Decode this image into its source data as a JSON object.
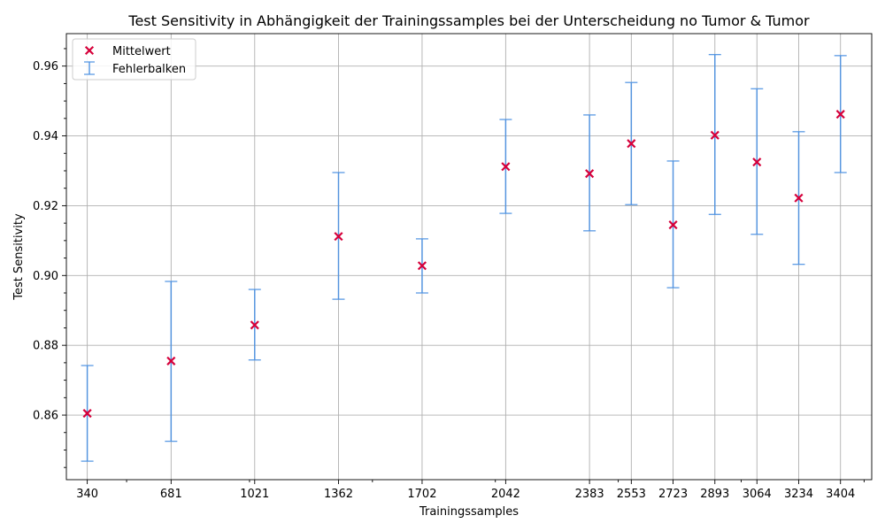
{
  "chart_data": {
    "type": "scatter",
    "title": "Test Sensitivity in Abhängigkeit der Trainingssamples bei der Unterscheidung no Tumor & Tumor",
    "xlabel": "Trainingssamples",
    "ylabel": "Test Sensitivity",
    "x": [
      340,
      681,
      1021,
      1362,
      1702,
      2042,
      2383,
      2553,
      2723,
      2893,
      3064,
      3234,
      3404
    ],
    "x_tick_labels": [
      "340",
      "681",
      "1021",
      "1362",
      "1702",
      "2042",
      "2383",
      "2553",
      "2723",
      "2893",
      "3064",
      "3234",
      "3404"
    ],
    "series": [
      {
        "name": "Mittelwert",
        "values": [
          0.8605,
          0.8755,
          0.8858,
          0.9112,
          0.9028,
          0.9312,
          0.9292,
          0.9378,
          0.9145,
          0.9402,
          0.9325,
          0.9222,
          0.9462
        ],
        "color": "#d6003a",
        "marker": "x"
      }
    ],
    "error_bars": {
      "name": "Fehlerbalken",
      "color": "#4a90e2",
      "lower": [
        0.8468,
        0.8525,
        0.8758,
        0.8932,
        0.895,
        0.9178,
        0.9128,
        0.9203,
        0.8965,
        0.9175,
        0.9118,
        0.9032,
        0.9295
      ],
      "upper": [
        0.8742,
        0.8983,
        0.896,
        0.9295,
        0.9105,
        0.9447,
        0.946,
        0.9553,
        0.9328,
        0.9633,
        0.9535,
        0.9412,
        0.963
      ]
    },
    "y_ticks": [
      0.86,
      0.88,
      0.9,
      0.92,
      0.94,
      0.96
    ],
    "y_tick_labels": [
      "0.86",
      "0.88",
      "0.90",
      "0.92",
      "0.94",
      "0.96"
    ],
    "xlim": [
      255,
      3531
    ],
    "ylim": [
      0.8415,
      0.9693
    ],
    "grid": true,
    "legend_position": "top-left"
  }
}
